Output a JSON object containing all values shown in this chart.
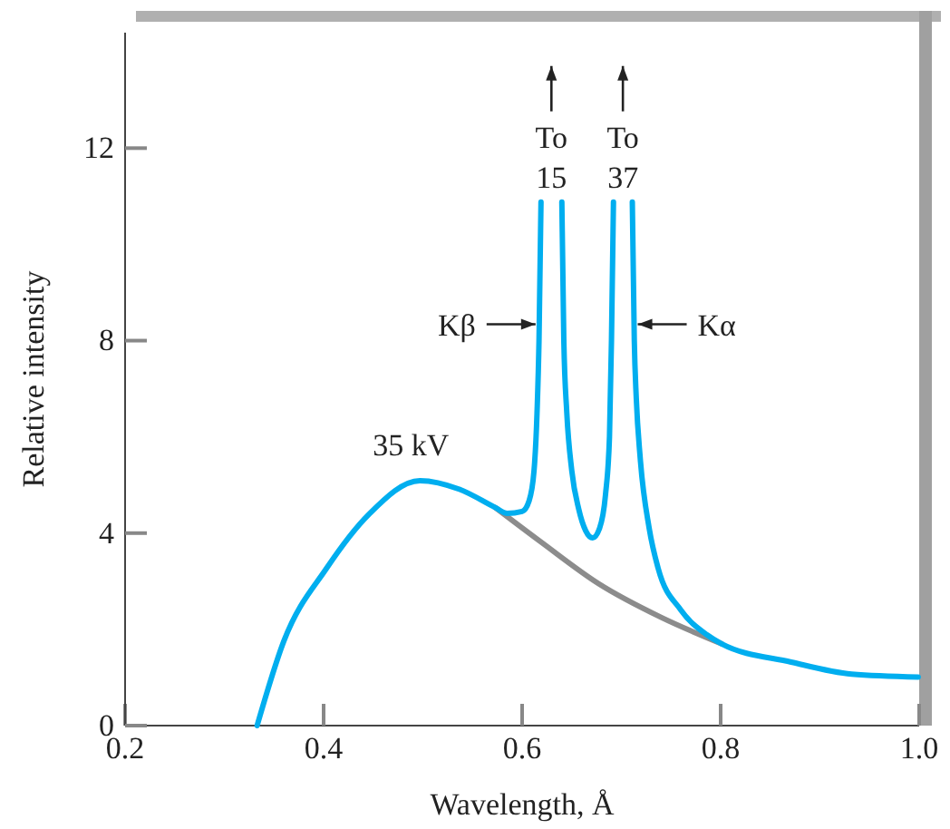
{
  "chart_data": {
    "type": "line",
    "xlabel": "Wavelength, Å",
    "ylabel": "Relative intensity",
    "xlim": [
      0.2,
      1.0
    ],
    "ylim": [
      0,
      14.4
    ],
    "xticks": [
      0.2,
      0.4,
      0.6,
      0.8,
      {
        "value": 1,
        "label": "1.0"
      }
    ],
    "yticks": [
      0,
      4,
      8,
      12
    ],
    "grid": false,
    "marker": "none",
    "line_style": "solid",
    "series": [
      {
        "name": "35 kV",
        "color": "#00aeef",
        "x": [
          0.333,
          0.36,
          0.403,
          0.446,
          0.497,
          0.537,
          0.573,
          0.585,
          0.6,
          0.607,
          0.612,
          0.615,
          0.617,
          0.619,
          0.63,
          0.64,
          0.642,
          0.645,
          0.65,
          0.657,
          0.664,
          0.671,
          0.678,
          0.684,
          0.688,
          0.69,
          0.692,
          0.7,
          0.711,
          0.713,
          0.715,
          0.719,
          0.728,
          0.737,
          0.76,
          0.786,
          0.801,
          0.871,
          0.932,
          0.999
        ],
        "values": [
          0,
          1.76,
          3.27,
          4.4,
          5.09,
          4.91,
          4.53,
          4.41,
          4.45,
          4.67,
          5.3,
          6.5,
          8,
          10.88,
          null,
          10.88,
          8,
          6.5,
          5.3,
          4.5,
          4.05,
          3.9,
          4.1,
          4.8,
          6,
          8,
          10.88,
          null,
          10.88,
          8,
          6.8,
          5.55,
          4.1,
          3.27,
          2.4,
          1.89,
          1.7,
          1.32,
          1.07,
          1.01
        ]
      },
      {
        "color": "#8c8c8c",
        "x": [
          0.573,
          0.62,
          0.677,
          0.74,
          0.801
        ],
        "values": [
          4.53,
          3.8,
          2.95,
          2.25,
          1.7
        ]
      }
    ],
    "annotations": [
      "To\n15",
      "To\n37",
      {
        "text": "Kβ",
        "x": 0.619,
        "y": 8
      },
      {
        "text": "Kα",
        "x": 0.711,
        "y": 8
      }
    ]
  }
}
